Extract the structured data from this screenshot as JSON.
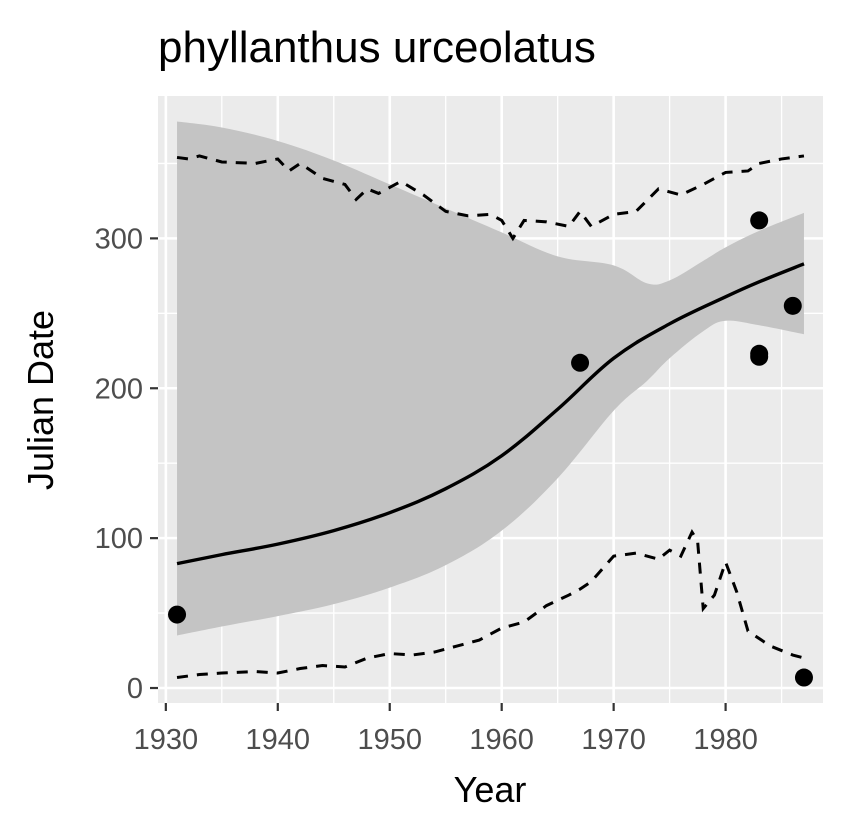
{
  "chart_data": {
    "type": "scatter",
    "title": "phyllanthus urceolatus",
    "xlabel": "Year",
    "ylabel": "Julian Date",
    "xlim": [
      1929.3,
      1988.7
    ],
    "ylim": [
      -10,
      395
    ],
    "x_ticks": [
      1930,
      1940,
      1950,
      1960,
      1970,
      1980
    ],
    "y_ticks": [
      0,
      100,
      200,
      300
    ],
    "grid": true,
    "legend": "none",
    "colors": {
      "panel": "#ebebeb",
      "grid": "#ffffff",
      "ribbon": "#c4c4c4",
      "line": "#000000",
      "points": "#000000"
    },
    "points": {
      "x": [
        1931,
        1967,
        1983,
        1983,
        1983,
        1986,
        1987
      ],
      "y": [
        49,
        217,
        312,
        223,
        221,
        255,
        7
      ]
    },
    "smooth": {
      "x": [
        1931,
        1935,
        1940,
        1945,
        1950,
        1955,
        1960,
        1965,
        1970,
        1975,
        1980,
        1983,
        1987
      ],
      "y": [
        83,
        89,
        96,
        105,
        117,
        133,
        155,
        186,
        220,
        243,
        261,
        271,
        283
      ]
    },
    "ribbon": {
      "x": [
        1931,
        1935,
        1940,
        1945,
        1950,
        1955,
        1960,
        1965,
        1970,
        1973,
        1975,
        1978,
        1980,
        1983,
        1987
      ],
      "upper": [
        378,
        374,
        365,
        352,
        336,
        320,
        304,
        288,
        282,
        270,
        272,
        285,
        294,
        305,
        317
      ],
      "lower": [
        35,
        41,
        48,
        56,
        67,
        82,
        105,
        140,
        185,
        205,
        220,
        238,
        245,
        242,
        236
      ]
    },
    "upper_dashed": {
      "x": [
        1931,
        1932,
        1933,
        1935,
        1938,
        1940,
        1941,
        1942,
        1944,
        1946,
        1947,
        1948,
        1949,
        1951,
        1953,
        1955,
        1957,
        1959,
        1960,
        1961,
        1962,
        1964,
        1966,
        1967,
        1968,
        1970,
        1972,
        1974,
        1976,
        1978,
        1980,
        1982,
        1983,
        1985,
        1987
      ],
      "y": [
        354,
        353,
        355,
        351,
        350,
        353,
        345,
        350,
        340,
        336,
        326,
        333,
        330,
        338,
        329,
        318,
        315,
        316,
        312,
        300,
        312,
        311,
        308,
        318,
        308,
        316,
        318,
        333,
        329,
        336,
        344,
        345,
        350,
        353,
        355
      ]
    },
    "lower_dashed": {
      "x": [
        1931,
        1933,
        1935,
        1938,
        1940,
        1942,
        1944,
        1946,
        1948,
        1950,
        1952,
        1954,
        1956,
        1958,
        1960,
        1962,
        1964,
        1966,
        1967,
        1968,
        1970,
        1972,
        1974,
        1975,
        1976,
        1977,
        1977.5,
        1978,
        1979,
        1980,
        1981,
        1982,
        1984,
        1986,
        1987
      ],
      "y": [
        7,
        9,
        10,
        11,
        10,
        13,
        15,
        14,
        20,
        23,
        22,
        24,
        28,
        32,
        40,
        44,
        55,
        62,
        66,
        71,
        88,
        90,
        86,
        92,
        88,
        104,
        98,
        53,
        62,
        84,
        64,
        38,
        28,
        22,
        20
      ]
    }
  }
}
